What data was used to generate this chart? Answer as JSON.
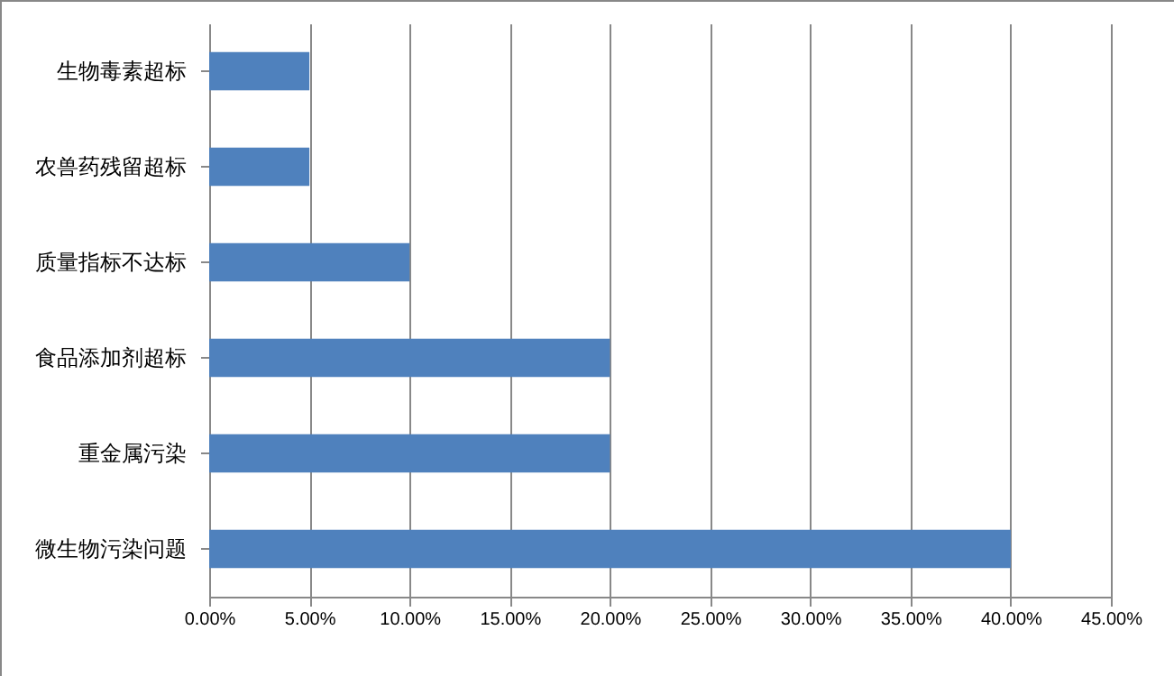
{
  "chart_data": {
    "type": "bar",
    "orientation": "horizontal",
    "categories": [
      "生物毒素超标",
      "农兽药残留超标",
      "质量指标不达标",
      "食品添加剂超标",
      "重金属污染",
      "微生物污染问题"
    ],
    "values": [
      5,
      5,
      10,
      20,
      20,
      40
    ],
    "color": "#4f81bd",
    "xlim": [
      0,
      45
    ],
    "xticks": [
      {
        "value": 0,
        "label": "0.00%"
      },
      {
        "value": 5,
        "label": "5.00%"
      },
      {
        "value": 10,
        "label": "10.00%"
      },
      {
        "value": 15,
        "label": "15.00%"
      },
      {
        "value": 20,
        "label": "20.00%"
      },
      {
        "value": 25,
        "label": "25.00%"
      },
      {
        "value": 30,
        "label": "30.00%"
      },
      {
        "value": 35,
        "label": "35.00%"
      },
      {
        "value": 40,
        "label": "40.00%"
      },
      {
        "value": 45,
        "label": "45.00%"
      }
    ],
    "grid": "x"
  }
}
